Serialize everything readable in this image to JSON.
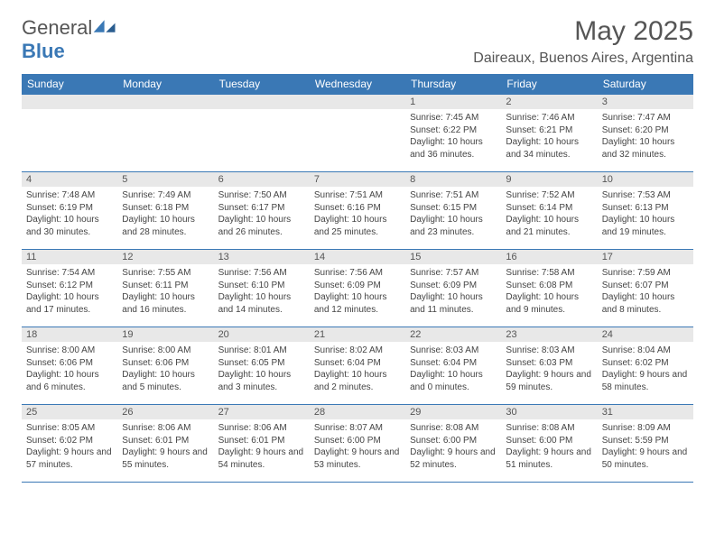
{
  "brand": {
    "name_a": "General",
    "name_b": "Blue",
    "accent": "#3a78b5"
  },
  "title": "May 2025",
  "location": "Daireaux, Buenos Aires, Argentina",
  "colors": {
    "header_bg": "#3a78b5",
    "header_text": "#ffffff",
    "daynum_bg": "#e8e8e8",
    "body_text": "#444444",
    "rule": "#3a78b5"
  },
  "weekdays": [
    "Sunday",
    "Monday",
    "Tuesday",
    "Wednesday",
    "Thursday",
    "Friday",
    "Saturday"
  ],
  "weeks": [
    [
      {
        "n": "",
        "sr": "",
        "ss": "",
        "dl": ""
      },
      {
        "n": "",
        "sr": "",
        "ss": "",
        "dl": ""
      },
      {
        "n": "",
        "sr": "",
        "ss": "",
        "dl": ""
      },
      {
        "n": "",
        "sr": "",
        "ss": "",
        "dl": ""
      },
      {
        "n": "1",
        "sr": "Sunrise: 7:45 AM",
        "ss": "Sunset: 6:22 PM",
        "dl": "Daylight: 10 hours and 36 minutes."
      },
      {
        "n": "2",
        "sr": "Sunrise: 7:46 AM",
        "ss": "Sunset: 6:21 PM",
        "dl": "Daylight: 10 hours and 34 minutes."
      },
      {
        "n": "3",
        "sr": "Sunrise: 7:47 AM",
        "ss": "Sunset: 6:20 PM",
        "dl": "Daylight: 10 hours and 32 minutes."
      }
    ],
    [
      {
        "n": "4",
        "sr": "Sunrise: 7:48 AM",
        "ss": "Sunset: 6:19 PM",
        "dl": "Daylight: 10 hours and 30 minutes."
      },
      {
        "n": "5",
        "sr": "Sunrise: 7:49 AM",
        "ss": "Sunset: 6:18 PM",
        "dl": "Daylight: 10 hours and 28 minutes."
      },
      {
        "n": "6",
        "sr": "Sunrise: 7:50 AM",
        "ss": "Sunset: 6:17 PM",
        "dl": "Daylight: 10 hours and 26 minutes."
      },
      {
        "n": "7",
        "sr": "Sunrise: 7:51 AM",
        "ss": "Sunset: 6:16 PM",
        "dl": "Daylight: 10 hours and 25 minutes."
      },
      {
        "n": "8",
        "sr": "Sunrise: 7:51 AM",
        "ss": "Sunset: 6:15 PM",
        "dl": "Daylight: 10 hours and 23 minutes."
      },
      {
        "n": "9",
        "sr": "Sunrise: 7:52 AM",
        "ss": "Sunset: 6:14 PM",
        "dl": "Daylight: 10 hours and 21 minutes."
      },
      {
        "n": "10",
        "sr": "Sunrise: 7:53 AM",
        "ss": "Sunset: 6:13 PM",
        "dl": "Daylight: 10 hours and 19 minutes."
      }
    ],
    [
      {
        "n": "11",
        "sr": "Sunrise: 7:54 AM",
        "ss": "Sunset: 6:12 PM",
        "dl": "Daylight: 10 hours and 17 minutes."
      },
      {
        "n": "12",
        "sr": "Sunrise: 7:55 AM",
        "ss": "Sunset: 6:11 PM",
        "dl": "Daylight: 10 hours and 16 minutes."
      },
      {
        "n": "13",
        "sr": "Sunrise: 7:56 AM",
        "ss": "Sunset: 6:10 PM",
        "dl": "Daylight: 10 hours and 14 minutes."
      },
      {
        "n": "14",
        "sr": "Sunrise: 7:56 AM",
        "ss": "Sunset: 6:09 PM",
        "dl": "Daylight: 10 hours and 12 minutes."
      },
      {
        "n": "15",
        "sr": "Sunrise: 7:57 AM",
        "ss": "Sunset: 6:09 PM",
        "dl": "Daylight: 10 hours and 11 minutes."
      },
      {
        "n": "16",
        "sr": "Sunrise: 7:58 AM",
        "ss": "Sunset: 6:08 PM",
        "dl": "Daylight: 10 hours and 9 minutes."
      },
      {
        "n": "17",
        "sr": "Sunrise: 7:59 AM",
        "ss": "Sunset: 6:07 PM",
        "dl": "Daylight: 10 hours and 8 minutes."
      }
    ],
    [
      {
        "n": "18",
        "sr": "Sunrise: 8:00 AM",
        "ss": "Sunset: 6:06 PM",
        "dl": "Daylight: 10 hours and 6 minutes."
      },
      {
        "n": "19",
        "sr": "Sunrise: 8:00 AM",
        "ss": "Sunset: 6:06 PM",
        "dl": "Daylight: 10 hours and 5 minutes."
      },
      {
        "n": "20",
        "sr": "Sunrise: 8:01 AM",
        "ss": "Sunset: 6:05 PM",
        "dl": "Daylight: 10 hours and 3 minutes."
      },
      {
        "n": "21",
        "sr": "Sunrise: 8:02 AM",
        "ss": "Sunset: 6:04 PM",
        "dl": "Daylight: 10 hours and 2 minutes."
      },
      {
        "n": "22",
        "sr": "Sunrise: 8:03 AM",
        "ss": "Sunset: 6:04 PM",
        "dl": "Daylight: 10 hours and 0 minutes."
      },
      {
        "n": "23",
        "sr": "Sunrise: 8:03 AM",
        "ss": "Sunset: 6:03 PM",
        "dl": "Daylight: 9 hours and 59 minutes."
      },
      {
        "n": "24",
        "sr": "Sunrise: 8:04 AM",
        "ss": "Sunset: 6:02 PM",
        "dl": "Daylight: 9 hours and 58 minutes."
      }
    ],
    [
      {
        "n": "25",
        "sr": "Sunrise: 8:05 AM",
        "ss": "Sunset: 6:02 PM",
        "dl": "Daylight: 9 hours and 57 minutes."
      },
      {
        "n": "26",
        "sr": "Sunrise: 8:06 AM",
        "ss": "Sunset: 6:01 PM",
        "dl": "Daylight: 9 hours and 55 minutes."
      },
      {
        "n": "27",
        "sr": "Sunrise: 8:06 AM",
        "ss": "Sunset: 6:01 PM",
        "dl": "Daylight: 9 hours and 54 minutes."
      },
      {
        "n": "28",
        "sr": "Sunrise: 8:07 AM",
        "ss": "Sunset: 6:00 PM",
        "dl": "Daylight: 9 hours and 53 minutes."
      },
      {
        "n": "29",
        "sr": "Sunrise: 8:08 AM",
        "ss": "Sunset: 6:00 PM",
        "dl": "Daylight: 9 hours and 52 minutes."
      },
      {
        "n": "30",
        "sr": "Sunrise: 8:08 AM",
        "ss": "Sunset: 6:00 PM",
        "dl": "Daylight: 9 hours and 51 minutes."
      },
      {
        "n": "31",
        "sr": "Sunrise: 8:09 AM",
        "ss": "Sunset: 5:59 PM",
        "dl": "Daylight: 9 hours and 50 minutes."
      }
    ]
  ]
}
